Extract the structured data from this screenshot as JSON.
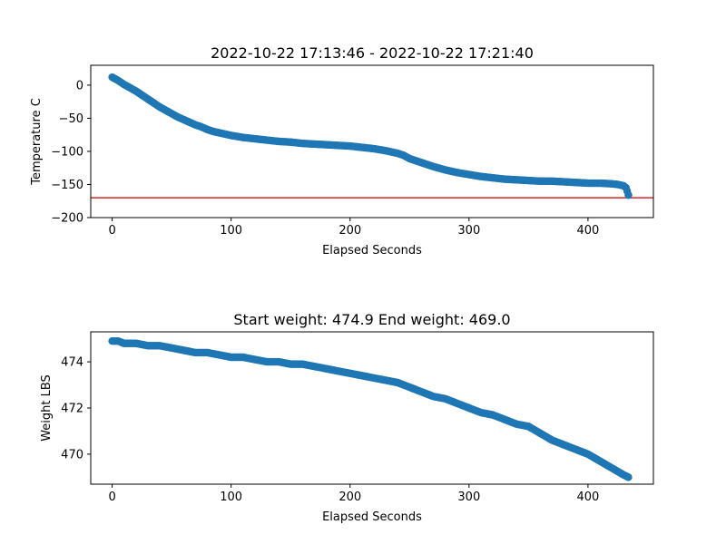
{
  "chart_data": [
    {
      "type": "scatter",
      "title": "2022-10-22 17:13:46 - 2022-10-22 17:21:40",
      "xlabel": "Elapsed Seconds",
      "ylabel": "Temperature C",
      "xlim": [
        -18,
        455
      ],
      "ylim": [
        -200,
        30
      ],
      "xticks": [
        0,
        100,
        200,
        300,
        400
      ],
      "yticks": [
        0,
        -50,
        -100,
        -150,
        -200
      ],
      "xtick_labels": [
        "0",
        "100",
        "200",
        "300",
        "400"
      ],
      "ytick_labels": [
        "0",
        "−50",
        "−100",
        "−150",
        "−200"
      ],
      "marker_color": "#1f77b4",
      "reference_line": {
        "y": -170,
        "color": "#d62728"
      },
      "grid": false,
      "series": [
        {
          "points": [
            [
              0,
              12
            ],
            [
              5,
              7
            ],
            [
              10,
              1
            ],
            [
              15,
              -4
            ],
            [
              20,
              -9
            ],
            [
              25,
              -15
            ],
            [
              30,
              -21
            ],
            [
              35,
              -27
            ],
            [
              40,
              -33
            ],
            [
              45,
              -38
            ],
            [
              50,
              -43
            ],
            [
              55,
              -48
            ],
            [
              60,
              -52
            ],
            [
              65,
              -56
            ],
            [
              70,
              -60
            ],
            [
              75,
              -63
            ],
            [
              80,
              -67
            ],
            [
              85,
              -70
            ],
            [
              90,
              -72
            ],
            [
              95,
              -74
            ],
            [
              100,
              -76
            ],
            [
              110,
              -79
            ],
            [
              120,
              -81
            ],
            [
              130,
              -83
            ],
            [
              140,
              -85
            ],
            [
              150,
              -86
            ],
            [
              160,
              -88
            ],
            [
              170,
              -89
            ],
            [
              180,
              -90
            ],
            [
              190,
              -91
            ],
            [
              200,
              -92
            ],
            [
              210,
              -94
            ],
            [
              220,
              -96
            ],
            [
              230,
              -99
            ],
            [
              240,
              -103
            ],
            [
              245,
              -106
            ],
            [
              250,
              -111
            ],
            [
              260,
              -117
            ],
            [
              270,
              -123
            ],
            [
              280,
              -128
            ],
            [
              290,
              -132
            ],
            [
              300,
              -135
            ],
            [
              310,
              -138
            ],
            [
              320,
              -140
            ],
            [
              330,
              -142
            ],
            [
              340,
              -143
            ],
            [
              350,
              -144
            ],
            [
              360,
              -145
            ],
            [
              370,
              -145
            ],
            [
              380,
              -146
            ],
            [
              390,
              -147
            ],
            [
              400,
              -148
            ],
            [
              410,
              -148
            ],
            [
              420,
              -149
            ],
            [
              425,
              -150
            ],
            [
              430,
              -152
            ],
            [
              432,
              -155
            ],
            [
              433,
              -160
            ],
            [
              434,
              -166
            ]
          ]
        }
      ]
    },
    {
      "type": "scatter",
      "title": "Start weight: 474.9 End weight: 469.0",
      "xlabel": "Elapsed Seconds",
      "ylabel": "Weight LBS",
      "xlim": [
        -18,
        455
      ],
      "ylim": [
        468.7,
        475.3
      ],
      "xticks": [
        0,
        100,
        200,
        300,
        400
      ],
      "yticks": [
        470,
        472,
        474
      ],
      "xtick_labels": [
        "0",
        "100",
        "200",
        "300",
        "400"
      ],
      "ytick_labels": [
        "470",
        "472",
        "474"
      ],
      "marker_color": "#1f77b4",
      "grid": false,
      "series": [
        {
          "points": [
            [
              0,
              474.9
            ],
            [
              5,
              474.9
            ],
            [
              10,
              474.8
            ],
            [
              20,
              474.8
            ],
            [
              30,
              474.7
            ],
            [
              40,
              474.7
            ],
            [
              50,
              474.6
            ],
            [
              60,
              474.5
            ],
            [
              70,
              474.4
            ],
            [
              80,
              474.4
            ],
            [
              90,
              474.3
            ],
            [
              100,
              474.2
            ],
            [
              110,
              474.2
            ],
            [
              120,
              474.1
            ],
            [
              130,
              474.0
            ],
            [
              140,
              474.0
            ],
            [
              150,
              473.9
            ],
            [
              160,
              473.9
            ],
            [
              170,
              473.8
            ],
            [
              180,
              473.7
            ],
            [
              190,
              473.6
            ],
            [
              200,
              473.5
            ],
            [
              210,
              473.4
            ],
            [
              220,
              473.3
            ],
            [
              230,
              473.2
            ],
            [
              240,
              473.1
            ],
            [
              250,
              472.9
            ],
            [
              260,
              472.7
            ],
            [
              270,
              472.5
            ],
            [
              280,
              472.4
            ],
            [
              290,
              472.2
            ],
            [
              300,
              472.0
            ],
            [
              310,
              471.8
            ],
            [
              320,
              471.7
            ],
            [
              330,
              471.5
            ],
            [
              340,
              471.3
            ],
            [
              350,
              471.2
            ],
            [
              360,
              470.9
            ],
            [
              370,
              470.6
            ],
            [
              380,
              470.4
            ],
            [
              390,
              470.2
            ],
            [
              400,
              470.0
            ],
            [
              410,
              469.7
            ],
            [
              420,
              469.4
            ],
            [
              430,
              469.1
            ],
            [
              434,
              469.0
            ]
          ]
        }
      ]
    }
  ]
}
